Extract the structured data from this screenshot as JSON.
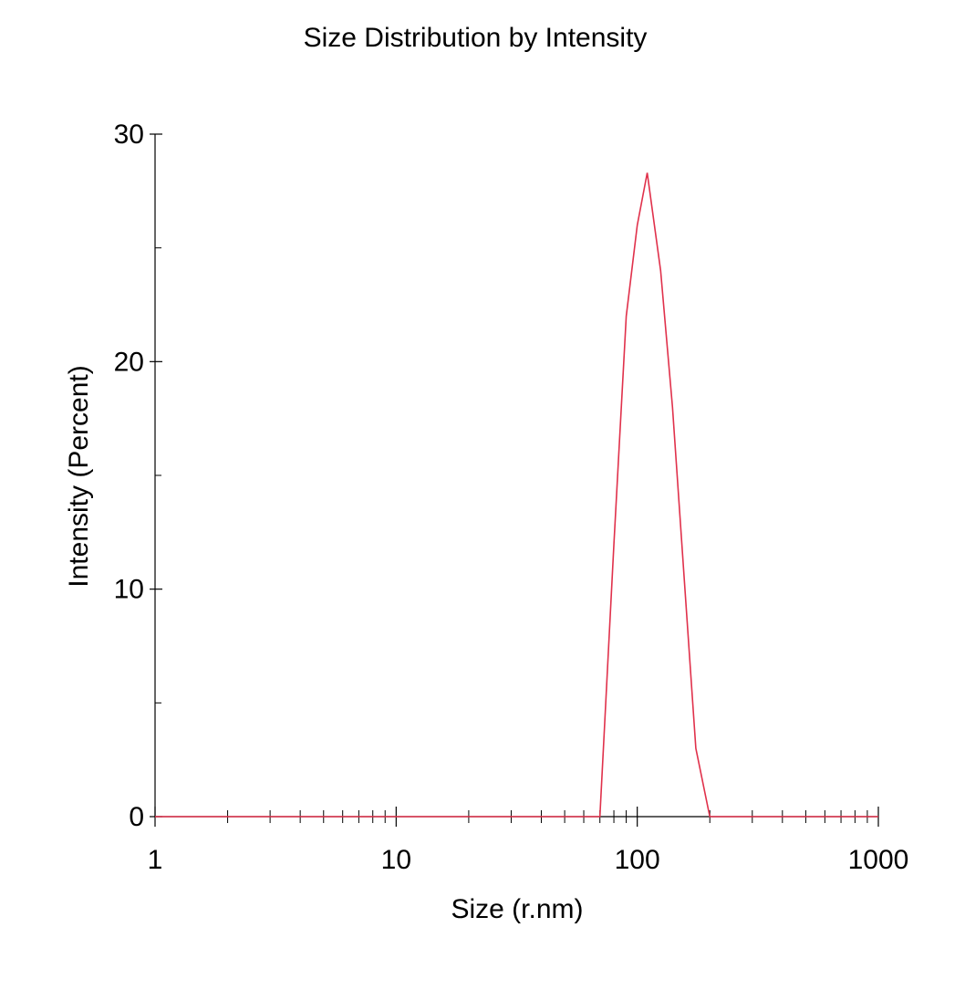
{
  "chart_data": {
    "type": "line",
    "title": "Size Distribution by Intensity",
    "xlabel": "Size (r.nm)",
    "ylabel": "Intensity (Percent)",
    "x_scale": "log",
    "xlim": [
      1,
      1000
    ],
    "ylim": [
      0,
      30
    ],
    "x_ticks": [
      1,
      10,
      100,
      1000
    ],
    "x_tick_labels": [
      "1",
      "10",
      "100",
      "1000"
    ],
    "y_ticks": [
      0,
      10,
      20,
      30
    ],
    "y_tick_labels": [
      "0",
      "10",
      "20",
      "30"
    ],
    "y_minor_ticks": [
      5,
      15,
      25
    ],
    "grid": false,
    "legend": "none",
    "series": [
      {
        "color": "#e0314b",
        "x": [
          1,
          70,
          80,
          90,
          100,
          110,
          125,
          140,
          175,
          200,
          1000
        ],
        "y": [
          0,
          0,
          12,
          22,
          26,
          28.3,
          24,
          18,
          3,
          0,
          0
        ]
      }
    ]
  }
}
